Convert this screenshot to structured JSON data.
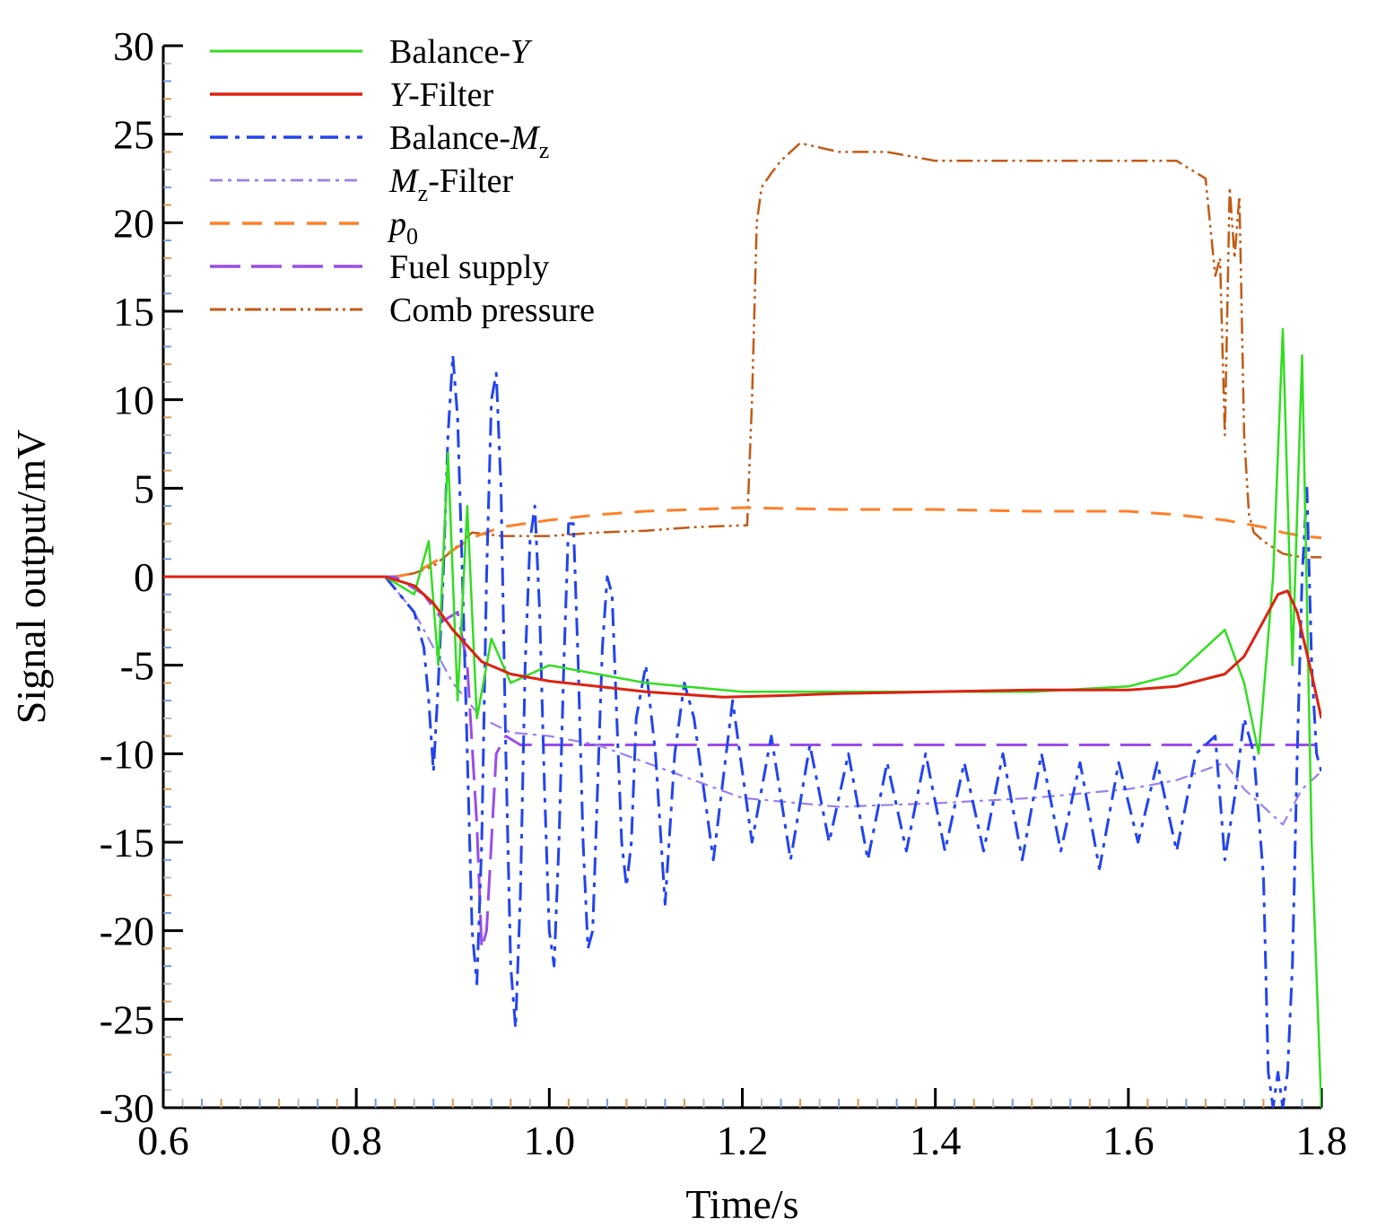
{
  "chart_data": {
    "type": "line",
    "title": "",
    "xlabel": "Time/s",
    "ylabel": "Signal output/mV",
    "xlim": [
      0.6,
      1.8
    ],
    "ylim": [
      -30,
      30
    ],
    "xticks": [
      "0.6",
      "0.8",
      "1.0",
      "1.2",
      "1.4",
      "1.6",
      "1.8"
    ],
    "yticks": [
      "30",
      "25",
      "20",
      "15",
      "10",
      "5",
      "0",
      "-5",
      "-10",
      "-15",
      "-20",
      "-25",
      "-30"
    ],
    "grid": false,
    "legend_position": "top-left",
    "series": [
      {
        "name": "Balance-Y",
        "legend": {
          "pre": "Balance-",
          "ital": "Y",
          "sub": "",
          "post": ""
        },
        "color": "#33dd22",
        "dash": "",
        "width": 2.5,
        "x": [
          0.6,
          0.83,
          0.86,
          0.875,
          0.885,
          0.895,
          0.905,
          0.915,
          0.925,
          0.94,
          0.96,
          1.0,
          1.1,
          1.2,
          1.3,
          1.4,
          1.5,
          1.6,
          1.65,
          1.68,
          1.7,
          1.72,
          1.735,
          1.75,
          1.76,
          1.77,
          1.78,
          1.79,
          1.8
        ],
        "y": [
          0.0,
          0.0,
          -1.0,
          2.0,
          -5.0,
          7.0,
          -7.0,
          4.0,
          -8.0,
          -3.5,
          -6.0,
          -5.0,
          -6.0,
          -6.5,
          -6.5,
          -6.5,
          -6.5,
          -6.2,
          -5.5,
          -4.0,
          -3.0,
          -6.0,
          -10.0,
          0.0,
          14.0,
          -5.0,
          12.5,
          -15.0,
          -30.0
        ]
      },
      {
        "name": "Y-Filter",
        "legend": {
          "pre": "",
          "ital": "Y",
          "sub": "",
          "post": "-Filter"
        },
        "color": "#dd2211",
        "dash": "",
        "width": 3,
        "x": [
          0.6,
          0.83,
          0.86,
          0.88,
          0.9,
          0.93,
          0.96,
          1.0,
          1.05,
          1.1,
          1.18,
          1.25,
          1.3,
          1.4,
          1.5,
          1.6,
          1.65,
          1.7,
          1.72,
          1.74,
          1.755,
          1.765,
          1.775,
          1.79,
          1.8
        ],
        "y": [
          0.0,
          0.0,
          -0.5,
          -1.5,
          -3.0,
          -4.8,
          -5.5,
          -5.9,
          -6.2,
          -6.5,
          -6.8,
          -6.7,
          -6.6,
          -6.5,
          -6.4,
          -6.4,
          -6.2,
          -5.5,
          -4.5,
          -2.5,
          -1.0,
          -0.8,
          -2.0,
          -5.5,
          -8.0
        ]
      },
      {
        "name": "Balance-Mz",
        "legend": {
          "pre": "Balance-",
          "ital": "M",
          "sub": "z",
          "post": ""
        },
        "color": "#2244ee",
        "dash": "20,8,5,8",
        "width": 3,
        "x": [
          0.6,
          0.83,
          0.86,
          0.87,
          0.875,
          0.88,
          0.885,
          0.89,
          0.895,
          0.9,
          0.905,
          0.91,
          0.915,
          0.92,
          0.925,
          0.93,
          0.935,
          0.94,
          0.945,
          0.95,
          0.955,
          0.96,
          0.965,
          0.97,
          0.975,
          0.98,
          0.985,
          0.99,
          0.995,
          1.0,
          1.005,
          1.01,
          1.015,
          1.02,
          1.025,
          1.03,
          1.035,
          1.04,
          1.045,
          1.05,
          1.055,
          1.06,
          1.065,
          1.07,
          1.075,
          1.08,
          1.085,
          1.09,
          1.1,
          1.11,
          1.12,
          1.13,
          1.14,
          1.15,
          1.17,
          1.19,
          1.21,
          1.23,
          1.25,
          1.27,
          1.29,
          1.31,
          1.33,
          1.35,
          1.37,
          1.39,
          1.41,
          1.43,
          1.45,
          1.47,
          1.49,
          1.51,
          1.53,
          1.55,
          1.57,
          1.59,
          1.61,
          1.63,
          1.65,
          1.67,
          1.69,
          1.7,
          1.71,
          1.72,
          1.73,
          1.74,
          1.745,
          1.75,
          1.755,
          1.76,
          1.765,
          1.77,
          1.775,
          1.78,
          1.785,
          1.79,
          1.795,
          1.8
        ],
        "y": [
          0.0,
          0.0,
          -2.0,
          -4.0,
          -7.0,
          -11.0,
          -6.0,
          0.0,
          8.0,
          12.5,
          9.0,
          0.0,
          -10.0,
          -20.0,
          -23.0,
          -15.0,
          0.0,
          10.0,
          11.5,
          5.0,
          -10.0,
          -22.0,
          -25.5,
          -18.0,
          -5.0,
          2.0,
          4.0,
          -2.0,
          -12.0,
          -20.0,
          -22.0,
          -15.0,
          -5.0,
          3.0,
          3.0,
          -5.0,
          -15.0,
          -21.0,
          -20.0,
          -12.0,
          -4.0,
          0.0,
          -1.0,
          -8.0,
          -15.0,
          -17.5,
          -15.0,
          -8.0,
          -5.0,
          -10.0,
          -18.5,
          -10.0,
          -6.0,
          -8.0,
          -16.0,
          -7.0,
          -15.0,
          -9.0,
          -16.0,
          -9.5,
          -15.0,
          -10.0,
          -16.0,
          -10.5,
          -15.5,
          -10.0,
          -15.5,
          -10.5,
          -15.5,
          -10.0,
          -16.0,
          -10.0,
          -15.5,
          -10.5,
          -16.5,
          -10.5,
          -15.0,
          -10.5,
          -15.5,
          -10.0,
          -9.0,
          -16.0,
          -12.5,
          -8.0,
          -10.0,
          -17.0,
          -28.0,
          -30.0,
          -28.0,
          -30.0,
          -28.0,
          -22.0,
          -10.0,
          0.0,
          5.0,
          -5.0,
          -10.0,
          -11.0
        ]
      },
      {
        "name": "Mz-Filter",
        "legend": {
          "pre": "",
          "ital": "M",
          "sub": "z",
          "post": "-Filter"
        },
        "color": "#9a80ee",
        "dash": "14,6,4,6",
        "width": 2.2,
        "x": [
          0.6,
          0.83,
          0.86,
          0.9,
          0.93,
          0.96,
          1.0,
          1.05,
          1.1,
          1.15,
          1.2,
          1.3,
          1.4,
          1.5,
          1.6,
          1.65,
          1.7,
          1.72,
          1.74,
          1.76,
          1.78,
          1.8
        ],
        "y": [
          0.0,
          0.0,
          -2.0,
          -6.0,
          -8.0,
          -8.8,
          -9.0,
          -9.5,
          -10.5,
          -11.5,
          -12.5,
          -13.0,
          -12.8,
          -12.5,
          -12.0,
          -11.5,
          -10.5,
          -12.0,
          -13.0,
          -14.0,
          -12.0,
          -11.0
        ]
      },
      {
        "name": "p0",
        "legend": {
          "pre": "",
          "ital": "p",
          "sub": "0",
          "post": ""
        },
        "color": "#ff7f27",
        "dash": "22,14",
        "width": 3,
        "x": [
          0.6,
          0.84,
          0.86,
          0.88,
          0.9,
          0.92,
          0.95,
          1.0,
          1.05,
          1.1,
          1.2,
          1.3,
          1.4,
          1.5,
          1.6,
          1.65,
          1.7,
          1.72,
          1.74,
          1.76,
          1.78,
          1.8
        ],
        "y": [
          0.0,
          0.0,
          0.2,
          0.8,
          1.5,
          2.2,
          2.8,
          3.2,
          3.5,
          3.7,
          3.9,
          3.8,
          3.8,
          3.7,
          3.7,
          3.5,
          3.2,
          3.0,
          2.8,
          2.5,
          2.3,
          2.2
        ]
      },
      {
        "name": "Fuel supply",
        "legend": {
          "pre": "Fuel supply",
          "ital": "",
          "sub": "",
          "post": ""
        },
        "color": "#9a4de8",
        "dash": "34,12",
        "width": 3,
        "x": [
          0.6,
          0.84,
          0.87,
          0.89,
          0.905,
          0.915,
          0.925,
          0.93,
          0.935,
          0.94,
          0.945,
          0.955,
          0.97,
          0.99,
          1.0,
          1.8
        ],
        "y": [
          0.0,
          0.0,
          -1.0,
          -2.5,
          -2.0,
          -5.0,
          -14.0,
          -21.0,
          -20.0,
          -15.0,
          -10.0,
          -9.0,
          -9.5,
          -9.5,
          -9.5,
          -9.5
        ]
      },
      {
        "name": "Comb pressure",
        "legend": {
          "pre": "Comb pressure",
          "ital": "",
          "sub": "",
          "post": ""
        },
        "color": "#c25a15",
        "dash": "18,5,3,5,3,5",
        "width": 2.5,
        "x": [
          0.6,
          0.84,
          0.86,
          0.88,
          0.9,
          0.92,
          0.95,
          1.0,
          1.05,
          1.1,
          1.15,
          1.2,
          1.205,
          1.21,
          1.215,
          1.22,
          1.23,
          1.24,
          1.26,
          1.3,
          1.35,
          1.4,
          1.5,
          1.6,
          1.65,
          1.68,
          1.69,
          1.695,
          1.7,
          1.705,
          1.71,
          1.715,
          1.72,
          1.725,
          1.73,
          1.74,
          1.76,
          1.78,
          1.8
        ],
        "y": [
          0.0,
          0.0,
          0.2,
          0.6,
          1.5,
          2.5,
          2.3,
          2.3,
          2.5,
          2.6,
          2.8,
          2.9,
          2.9,
          10.0,
          20.0,
          22.0,
          22.8,
          23.5,
          24.5,
          24.0,
          24.0,
          23.5,
          23.5,
          23.5,
          23.5,
          22.5,
          17.0,
          18.0,
          8.0,
          22.0,
          18.0,
          21.5,
          8.0,
          3.5,
          2.5,
          2.0,
          1.3,
          1.1,
          1.1
        ]
      }
    ]
  }
}
